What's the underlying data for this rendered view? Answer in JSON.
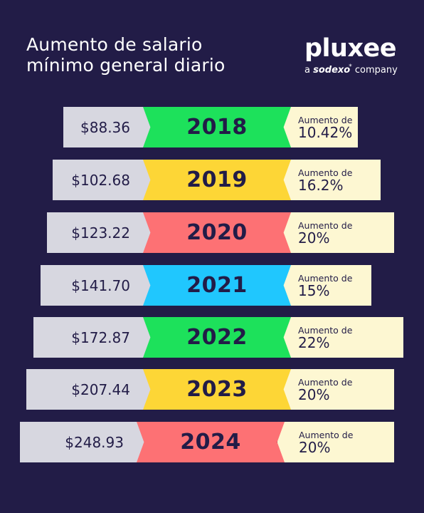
{
  "title": {
    "line1": "Aumento de salario",
    "line2": "mínimo general diario"
  },
  "brand": {
    "name": "pluxee",
    "tag_prefix": "a",
    "tag_company": "sodexo",
    "tag_star": "*",
    "tag_suffix": "company"
  },
  "rows": [
    {
      "amount": "$88.36",
      "year": "2018",
      "increase_label": "Aumento de",
      "increase_pct": "10.42%",
      "year_color": "#1de15b"
    },
    {
      "amount": "$102.68",
      "year": "2019",
      "increase_label": "Aumento de",
      "increase_pct": "16.2%",
      "year_color": "#fdd636"
    },
    {
      "amount": "$123.22",
      "year": "2020",
      "increase_label": "Aumento de",
      "increase_pct": "20%",
      "year_color": "#fd7174"
    },
    {
      "amount": "$141.70",
      "year": "2021",
      "increase_label": "Aumento de",
      "increase_pct": "15%",
      "year_color": "#20c7fe"
    },
    {
      "amount": "$172.87",
      "year": "2022",
      "increase_label": "Aumento de",
      "increase_pct": "22%",
      "year_color": "#1de15b"
    },
    {
      "amount": "$207.44",
      "year": "2023",
      "increase_label": "Aumento de",
      "increase_pct": "20%",
      "year_color": "#fdd636"
    },
    {
      "amount": "$248.93",
      "year": "2024",
      "increase_label": "Aumento de",
      "increase_pct": "20%",
      "year_color": "#fd7174"
    }
  ]
}
